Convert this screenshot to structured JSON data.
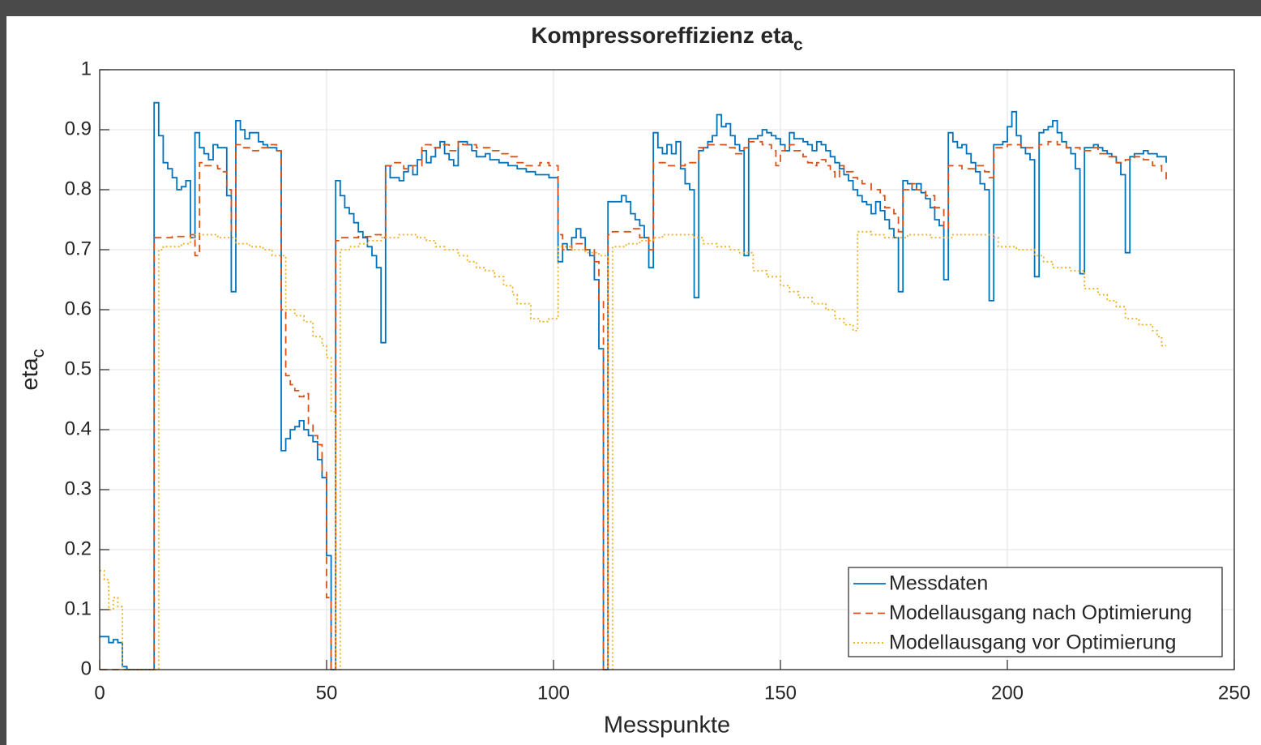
{
  "chart_data": {
    "type": "stairs",
    "title": {
      "text": "Kompressoreffizienz eta",
      "subscript": "c"
    },
    "xlabel": "Messpunkte",
    "ylabel": {
      "text": "eta",
      "subscript": "c"
    },
    "xlim": [
      0,
      250
    ],
    "xticks": [
      0,
      50,
      100,
      150,
      200,
      250
    ],
    "ylim": [
      0,
      1
    ],
    "yticks": [
      0,
      0.1,
      0.2,
      0.3,
      0.4,
      0.5,
      0.6,
      0.7,
      0.8,
      0.9,
      1
    ],
    "grid": true,
    "legend": "lower right",
    "series": [
      {
        "name": "Messdaten",
        "color": "#0072bd",
        "style": "solid",
        "x": [
          0,
          2,
          3,
          4,
          5,
          6,
          12,
          13,
          14,
          15,
          16,
          17,
          18,
          19,
          20,
          21,
          22,
          23,
          24,
          25,
          26,
          28,
          29,
          30,
          31,
          32,
          33,
          35,
          36,
          37,
          39,
          40,
          41,
          42,
          43,
          44,
          45,
          46,
          47,
          48,
          49,
          50,
          51,
          52,
          53,
          54,
          55,
          56,
          57,
          58,
          59,
          60,
          61,
          62,
          63,
          64,
          66,
          67,
          68,
          69,
          70,
          71,
          72,
          73,
          74,
          75,
          76,
          77,
          78,
          79,
          81,
          82,
          83,
          85,
          86,
          88,
          90,
          92,
          94,
          96,
          99,
          101,
          102,
          103,
          104,
          105,
          106,
          107,
          108,
          109,
          110,
          111,
          112,
          115,
          116,
          117,
          118,
          119,
          120,
          121,
          122,
          123,
          124,
          125,
          126,
          127,
          128,
          129,
          130,
          131,
          132,
          133,
          134,
          135,
          136,
          137,
          138,
          139,
          140,
          141,
          142,
          143,
          145,
          146,
          147,
          148,
          149,
          150,
          151,
          152,
          153,
          155,
          156,
          157,
          158,
          159,
          160,
          161,
          162,
          163,
          164,
          165,
          166,
          167,
          168,
          169,
          170,
          171,
          172,
          173,
          174,
          175,
          176,
          177,
          178,
          179,
          180,
          181,
          182,
          183,
          184,
          185,
          186,
          187,
          188,
          189,
          190,
          191,
          192,
          193,
          194,
          195,
          196,
          197,
          199,
          200,
          201,
          202,
          203,
          204,
          205,
          206,
          207,
          208,
          209,
          210,
          211,
          212,
          213,
          214,
          215,
          216,
          217,
          219,
          220,
          221,
          222,
          223,
          224,
          225,
          226,
          227,
          228,
          230,
          231,
          233,
          235
        ],
        "values": [
          0.055,
          0.045,
          0.05,
          0.045,
          0.005,
          0,
          0.945,
          0.89,
          0.845,
          0.835,
          0.82,
          0.8,
          0.805,
          0.815,
          0.72,
          0.895,
          0.87,
          0.86,
          0.85,
          0.875,
          0.87,
          0.79,
          0.63,
          0.915,
          0.9,
          0.885,
          0.895,
          0.88,
          0.875,
          0.87,
          0.865,
          0.365,
          0.385,
          0.4,
          0.405,
          0.415,
          0.4,
          0.39,
          0.38,
          0.35,
          0.32,
          0.19,
          0,
          0.815,
          0.79,
          0.77,
          0.76,
          0.745,
          0.73,
          0.72,
          0.705,
          0.69,
          0.67,
          0.545,
          0.84,
          0.82,
          0.815,
          0.83,
          0.84,
          0.825,
          0.85,
          0.865,
          0.845,
          0.855,
          0.87,
          0.88,
          0.86,
          0.85,
          0.84,
          0.88,
          0.875,
          0.865,
          0.855,
          0.86,
          0.85,
          0.845,
          0.84,
          0.835,
          0.83,
          0.825,
          0.82,
          0.68,
          0.71,
          0.7,
          0.72,
          0.735,
          0.72,
          0.7,
          0.69,
          0.65,
          0.535,
          0,
          0.78,
          0.79,
          0.78,
          0.76,
          0.75,
          0.74,
          0.72,
          0.67,
          0.895,
          0.87,
          0.86,
          0.875,
          0.86,
          0.88,
          0.835,
          0.81,
          0.8,
          0.62,
          0.865,
          0.87,
          0.88,
          0.89,
          0.925,
          0.905,
          0.91,
          0.89,
          0.875,
          0.865,
          0.69,
          0.885,
          0.89,
          0.9,
          0.895,
          0.89,
          0.885,
          0.875,
          0.865,
          0.895,
          0.885,
          0.88,
          0.875,
          0.865,
          0.88,
          0.875,
          0.865,
          0.855,
          0.845,
          0.835,
          0.825,
          0.815,
          0.8,
          0.79,
          0.78,
          0.775,
          0.76,
          0.78,
          0.765,
          0.75,
          0.735,
          0.72,
          0.63,
          0.815,
          0.81,
          0.8,
          0.81,
          0.795,
          0.785,
          0.77,
          0.75,
          0.74,
          0.65,
          0.895,
          0.88,
          0.87,
          0.875,
          0.86,
          0.845,
          0.83,
          0.81,
          0.8,
          0.615,
          0.875,
          0.88,
          0.905,
          0.93,
          0.89,
          0.87,
          0.86,
          0.85,
          0.655,
          0.895,
          0.9,
          0.905,
          0.915,
          0.895,
          0.88,
          0.87,
          0.86,
          0.835,
          0.66,
          0.87,
          0.875,
          0.87,
          0.865,
          0.86,
          0.855,
          0.845,
          0.825,
          0.695,
          0.855,
          0.86,
          0.865,
          0.86,
          0.855,
          0.845
        ]
      },
      {
        "name": "Modellausgang nach Optimierung",
        "color": "#d95319",
        "style": "dashed",
        "x": [
          0,
          12,
          16,
          20,
          21,
          22,
          23,
          26,
          27,
          28,
          29,
          30,
          31,
          33,
          35,
          37,
          39,
          40,
          41,
          42,
          43,
          44,
          45,
          46,
          47,
          48,
          49,
          50,
          51,
          52,
          53,
          57,
          60,
          62,
          63,
          65,
          67,
          69,
          71,
          73,
          75,
          77,
          79,
          80,
          83,
          86,
          88,
          90,
          92,
          94,
          97,
          99,
          101,
          102,
          104,
          107,
          109,
          110,
          111,
          112,
          113,
          117,
          119,
          121,
          122,
          125,
          129,
          132,
          134,
          138,
          140,
          142,
          143,
          146,
          148,
          149,
          150,
          151,
          152,
          153,
          155,
          156,
          157,
          158,
          159,
          160,
          161,
          162,
          163,
          164,
          166,
          167,
          168,
          170,
          172,
          173,
          175,
          176,
          177,
          179,
          180,
          182,
          184,
          186,
          187,
          190,
          193,
          195,
          196,
          197,
          200,
          203,
          207,
          209,
          211,
          213,
          216,
          219,
          220,
          222,
          224,
          226,
          228,
          230,
          232,
          234,
          235
        ],
        "values": [
          0,
          0.72,
          0.722,
          0.725,
          0.69,
          0.845,
          0.84,
          0.835,
          0.83,
          0.8,
          0.73,
          0.875,
          0.87,
          0.865,
          0.87,
          0.875,
          0.865,
          0.6,
          0.49,
          0.475,
          0.465,
          0.455,
          0.46,
          0.41,
          0.39,
          0.375,
          0.33,
          0.12,
          0,
          0.715,
          0.72,
          0.722,
          0.725,
          0.72,
          0.84,
          0.845,
          0.835,
          0.84,
          0.875,
          0.87,
          0.875,
          0.865,
          0.88,
          0.875,
          0.87,
          0.865,
          0.86,
          0.855,
          0.845,
          0.84,
          0.845,
          0.84,
          0.725,
          0.7,
          0.71,
          0.7,
          0.68,
          0.615,
          0,
          0.725,
          0.73,
          0.735,
          0.72,
          0.7,
          0.845,
          0.84,
          0.845,
          0.87,
          0.875,
          0.87,
          0.86,
          0.87,
          0.88,
          0.875,
          0.865,
          0.84,
          0.865,
          0.87,
          0.875,
          0.865,
          0.855,
          0.845,
          0.84,
          0.845,
          0.85,
          0.84,
          0.83,
          0.82,
          0.84,
          0.83,
          0.82,
          0.815,
          0.81,
          0.8,
          0.79,
          0.77,
          0.76,
          0.73,
          0.8,
          0.81,
          0.8,
          0.79,
          0.77,
          0.735,
          0.84,
          0.835,
          0.84,
          0.83,
          0.82,
          0.87,
          0.875,
          0.87,
          0.875,
          0.88,
          0.875,
          0.87,
          0.865,
          0.87,
          0.86,
          0.855,
          0.845,
          0.85,
          0.855,
          0.85,
          0.84,
          0.83,
          0.81
        ]
      },
      {
        "name": "Modellausgang vor Optimierung",
        "color": "#edb120",
        "style": "dotted",
        "x": [
          0,
          1,
          2,
          3,
          4,
          5,
          13,
          14,
          18,
          20,
          21,
          26,
          30,
          33,
          36,
          38,
          41,
          43,
          45,
          47,
          49,
          50,
          51,
          52,
          53,
          55,
          57,
          59,
          62,
          66,
          70,
          72,
          74,
          76,
          79,
          81,
          83,
          85,
          87,
          89,
          91,
          92,
          95,
          97,
          99,
          101,
          104,
          107,
          110,
          112,
          113,
          116,
          119,
          122,
          124,
          131,
          133,
          136,
          139,
          141,
          144,
          147,
          150,
          152,
          154,
          157,
          160,
          162,
          164,
          166,
          167,
          170,
          173,
          178,
          183,
          188,
          197,
          198,
          202,
          206,
          208,
          210,
          214,
          217,
          220,
          222,
          224,
          226,
          229,
          232,
          233,
          234,
          235
        ],
        "values": [
          0.165,
          0.15,
          0.1,
          0.12,
          0.105,
          0,
          0.7,
          0.705,
          0.71,
          0.72,
          0.725,
          0.72,
          0.71,
          0.705,
          0.7,
          0.69,
          0.6,
          0.59,
          0.58,
          0.555,
          0.54,
          0.52,
          0.43,
          0,
          0.7,
          0.705,
          0.71,
          0.715,
          0.72,
          0.725,
          0.72,
          0.715,
          0.705,
          0.7,
          0.69,
          0.68,
          0.67,
          0.665,
          0.655,
          0.64,
          0.625,
          0.61,
          0.585,
          0.58,
          0.585,
          0.705,
          0.7,
          0.695,
          0.69,
          0,
          0.705,
          0.71,
          0.715,
          0.72,
          0.725,
          0.72,
          0.71,
          0.705,
          0.7,
          0.695,
          0.665,
          0.655,
          0.64,
          0.63,
          0.62,
          0.61,
          0.6,
          0.585,
          0.575,
          0.565,
          0.73,
          0.725,
          0.72,
          0.725,
          0.72,
          0.725,
          0.72,
          0.705,
          0.7,
          0.69,
          0.68,
          0.67,
          0.665,
          0.635,
          0.625,
          0.615,
          0.605,
          0.585,
          0.575,
          0.565,
          0.555,
          0.54,
          0.54
        ]
      }
    ]
  }
}
